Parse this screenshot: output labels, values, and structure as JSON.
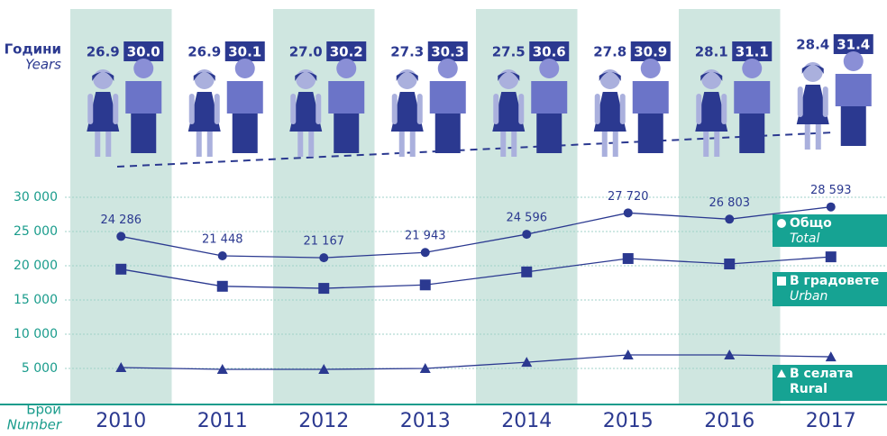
{
  "chart_data": {
    "type": "line",
    "categories": [
      "2010",
      "2011",
      "2012",
      "2013",
      "2014",
      "2015",
      "2016",
      "2017"
    ],
    "age_label": "Години",
    "age_label_en": "Years",
    "y_label": "Брой",
    "y_label_en": "Number",
    "ages": {
      "female": {
        "values": [
          26.9,
          26.9,
          27.0,
          27.3,
          27.5,
          27.8,
          28.1,
          28.4
        ],
        "value_labels": [
          "26.9",
          "26.9",
          "27.0",
          "27.3",
          "27.5",
          "27.8",
          "28.1",
          "28.4"
        ]
      },
      "male": {
        "values": [
          30.0,
          30.1,
          30.2,
          30.3,
          30.6,
          30.9,
          31.1,
          31.4
        ],
        "value_labels": [
          "30.0",
          "30.1",
          "30.2",
          "30.3",
          "30.6",
          "30.9",
          "31.1",
          "31.4"
        ]
      }
    },
    "ylim": [
      0,
      30000
    ],
    "yticks": [
      {
        "value": 5000,
        "label": "5 000"
      },
      {
        "value": 10000,
        "label": "10 000"
      },
      {
        "value": 15000,
        "label": "15 000"
      },
      {
        "value": 20000,
        "label": "20 000"
      },
      {
        "value": 25000,
        "label": "25 000"
      },
      {
        "value": 30000,
        "label": "30 000"
      }
    ],
    "grid": true,
    "series": [
      {
        "name": "Общо",
        "name_en": "Total",
        "marker": "circle",
        "color": "#2b3990",
        "values": [
          24286,
          21448,
          21167,
          21943,
          24596,
          27720,
          26803,
          28593
        ],
        "value_labels": [
          "24 286",
          "21 448",
          "21 167",
          "21 943",
          "24 596",
          "27 720",
          "26 803",
          "28 593"
        ]
      },
      {
        "name": "В градовете",
        "name_en": "Urban",
        "marker": "square",
        "color": "#2b3990",
        "values": [
          19500,
          17000,
          16700,
          17200,
          19100,
          21050,
          20260,
          21300
        ]
      },
      {
        "name": "В селата",
        "name_en": "Rural",
        "marker": "triangle",
        "color": "#2b3990",
        "values": [
          5130,
          4870,
          4870,
          5000,
          5900,
          6970,
          6970,
          6700
        ]
      }
    ]
  }
}
